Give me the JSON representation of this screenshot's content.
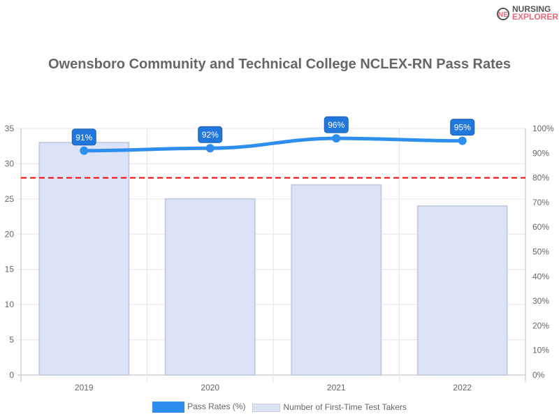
{
  "logo": {
    "line1": "NURSING",
    "line2": "EXPLORER"
  },
  "chart_data": {
    "type": "bar",
    "title": "Owensboro Community and Technical College NCLEX-RN Pass Rates",
    "categories": [
      "2019",
      "2020",
      "2021",
      "2022"
    ],
    "series": [
      {
        "name": "Pass Rates (%)",
        "type": "line",
        "axis": "right",
        "values": [
          91,
          92,
          96,
          95
        ],
        "labels": [
          "91%",
          "92%",
          "96%",
          "95%"
        ],
        "color": "#2e8ef0"
      },
      {
        "name": "Number of First-Time Test Takers",
        "type": "bar",
        "axis": "left",
        "values": [
          33,
          25,
          27,
          24
        ],
        "color": "#dce3f7",
        "border": "#c5cde0"
      }
    ],
    "ylim_left": [
      0,
      35
    ],
    "yticks_left": [
      "0",
      "5",
      "10",
      "15",
      "20",
      "25",
      "30",
      "35"
    ],
    "ylim_right": [
      0,
      100
    ],
    "yticks_right": [
      "0%",
      "10%",
      "20%",
      "30%",
      "40%",
      "50%",
      "60%",
      "70%",
      "80%",
      "90%",
      "100%"
    ],
    "reference_line": {
      "value": 80,
      "axis": "right",
      "color": "#ff0000",
      "style": "dashed"
    },
    "grid": true,
    "legend": "bottom"
  }
}
